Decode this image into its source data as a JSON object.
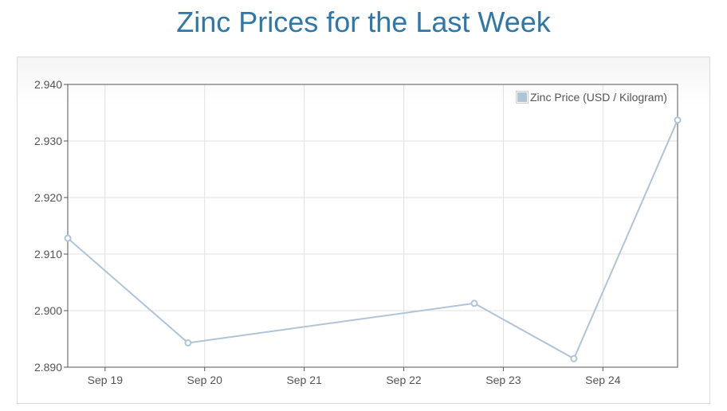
{
  "page": {
    "title": "Zinc Prices for the Last Week",
    "title_color": "#2e77a8"
  },
  "chart_data": {
    "type": "line",
    "title": "Zinc Prices for the Last Week",
    "xlabel": "",
    "ylabel": "",
    "x_ticks": [
      "Sep 19",
      "Sep 20",
      "Sep 21",
      "Sep 22",
      "Sep 23",
      "Sep 24"
    ],
    "xlim": [
      "Sep 18 15:00",
      "Sep 24 18:00"
    ],
    "ylim": [
      2.89,
      2.94
    ],
    "y_ticks": [
      "2.890",
      "2.900",
      "2.910",
      "2.920",
      "2.930",
      "2.940"
    ],
    "grid": true,
    "legend_position": "top-right",
    "series": [
      {
        "name": "Zinc Price (USD / Kilogram)",
        "color": "#b0c4d8",
        "points": [
          {
            "x": "Sep 18 15:00",
            "y": 2.9128
          },
          {
            "x": "Sep 19 20:00",
            "y": 2.8943
          },
          {
            "x": "Sep 22 17:00",
            "y": 2.9013
          },
          {
            "x": "Sep 23 17:00",
            "y": 2.8915
          },
          {
            "x": "Sep 24 18:00",
            "y": 2.9337
          }
        ]
      }
    ]
  }
}
